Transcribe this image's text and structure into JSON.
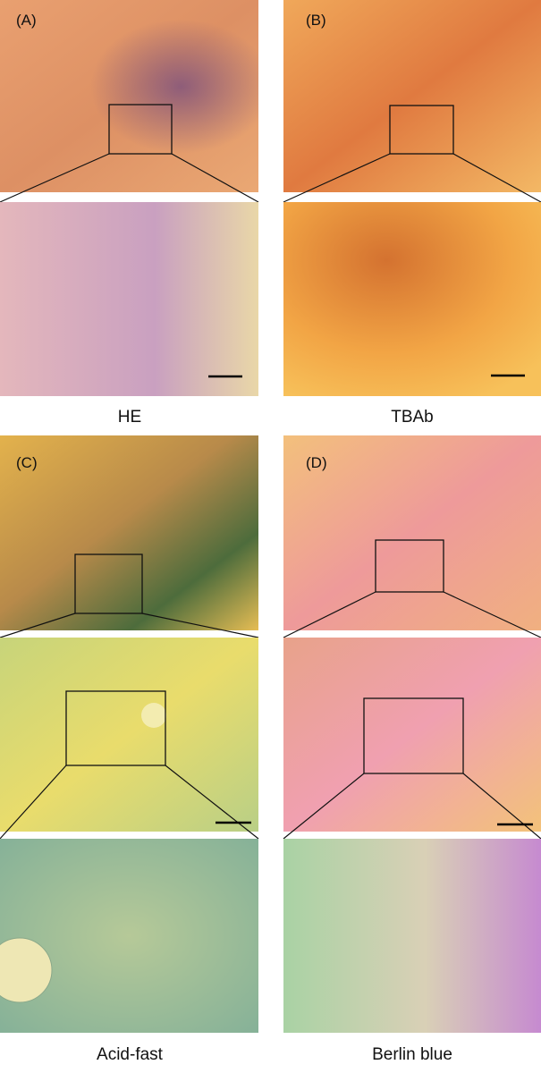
{
  "panels": [
    {
      "label": "(A)",
      "caption": "HE"
    },
    {
      "label": "(B)",
      "caption": "TBAb"
    },
    {
      "label": "(C)",
      "caption": "Acid-fast"
    },
    {
      "label": "(D)",
      "caption": "Berlin blue"
    }
  ]
}
